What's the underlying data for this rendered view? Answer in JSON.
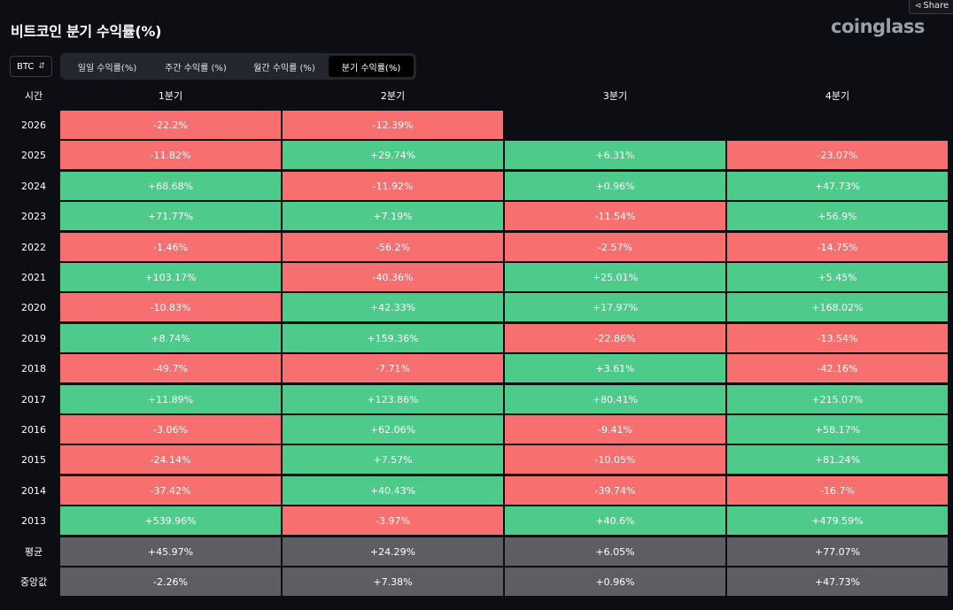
{
  "title": "비트코인 분기 수익률(%)",
  "brand": "coinglass",
  "share_label": "Share",
  "asset_select": {
    "value": "BTC"
  },
  "tabs": [
    {
      "label": "일일 수익률(%)",
      "active": false
    },
    {
      "label": "주간 수익률 (%)",
      "active": false
    },
    {
      "label": "월간 수익률 (%)",
      "active": false
    },
    {
      "label": "분기 수익률(%)",
      "active": true
    }
  ],
  "colors": {
    "positive": "#4ecb8a",
    "negative": "#f76f6f",
    "stat": "#5d5e63",
    "background": "#0c0e14"
  },
  "table": {
    "row_header": "시간",
    "columns": [
      "1분기",
      "2분기",
      "3분기",
      "4분기"
    ],
    "rows": [
      {
        "year": "2026",
        "values": [
          "-22.2%",
          "-12.39%",
          "",
          ""
        ]
      },
      {
        "year": "2025",
        "values": [
          "-11.82%",
          "+29.74%",
          "+6.31%",
          "-23.07%"
        ]
      },
      {
        "year": "2024",
        "values": [
          "+68.68%",
          "-11.92%",
          "+0.96%",
          "+47.73%"
        ]
      },
      {
        "year": "2023",
        "values": [
          "+71.77%",
          "+7.19%",
          "-11.54%",
          "+56.9%"
        ]
      },
      {
        "year": "2022",
        "values": [
          "-1.46%",
          "-56.2%",
          "-2.57%",
          "-14.75%"
        ]
      },
      {
        "year": "2021",
        "values": [
          "+103.17%",
          "-40.36%",
          "+25.01%",
          "+5.45%"
        ]
      },
      {
        "year": "2020",
        "values": [
          "-10.83%",
          "+42.33%",
          "+17.97%",
          "+168.02%"
        ]
      },
      {
        "year": "2019",
        "values": [
          "+8.74%",
          "+159.36%",
          "-22.86%",
          "-13.54%"
        ]
      },
      {
        "year": "2018",
        "values": [
          "-49.7%",
          "-7.71%",
          "+3.61%",
          "-42.16%"
        ]
      },
      {
        "year": "2017",
        "values": [
          "+11.89%",
          "+123.86%",
          "+80.41%",
          "+215.07%"
        ]
      },
      {
        "year": "2016",
        "values": [
          "-3.06%",
          "+62.06%",
          "-9.41%",
          "+58.17%"
        ]
      },
      {
        "year": "2015",
        "values": [
          "-24.14%",
          "+7.57%",
          "-10.05%",
          "+81.24%"
        ]
      },
      {
        "year": "2014",
        "values": [
          "-37.42%",
          "+40.43%",
          "-39.74%",
          "-16.7%"
        ]
      },
      {
        "year": "2013",
        "values": [
          "+539.96%",
          "-3.97%",
          "+40.6%",
          "+479.59%"
        ]
      }
    ],
    "summary": [
      {
        "label": "평균",
        "values": [
          "+45.97%",
          "+24.29%",
          "+6.05%",
          "+77.07%"
        ]
      },
      {
        "label": "중앙값",
        "values": [
          "-2.26%",
          "+7.38%",
          "+0.96%",
          "+47.73%"
        ]
      }
    ]
  }
}
